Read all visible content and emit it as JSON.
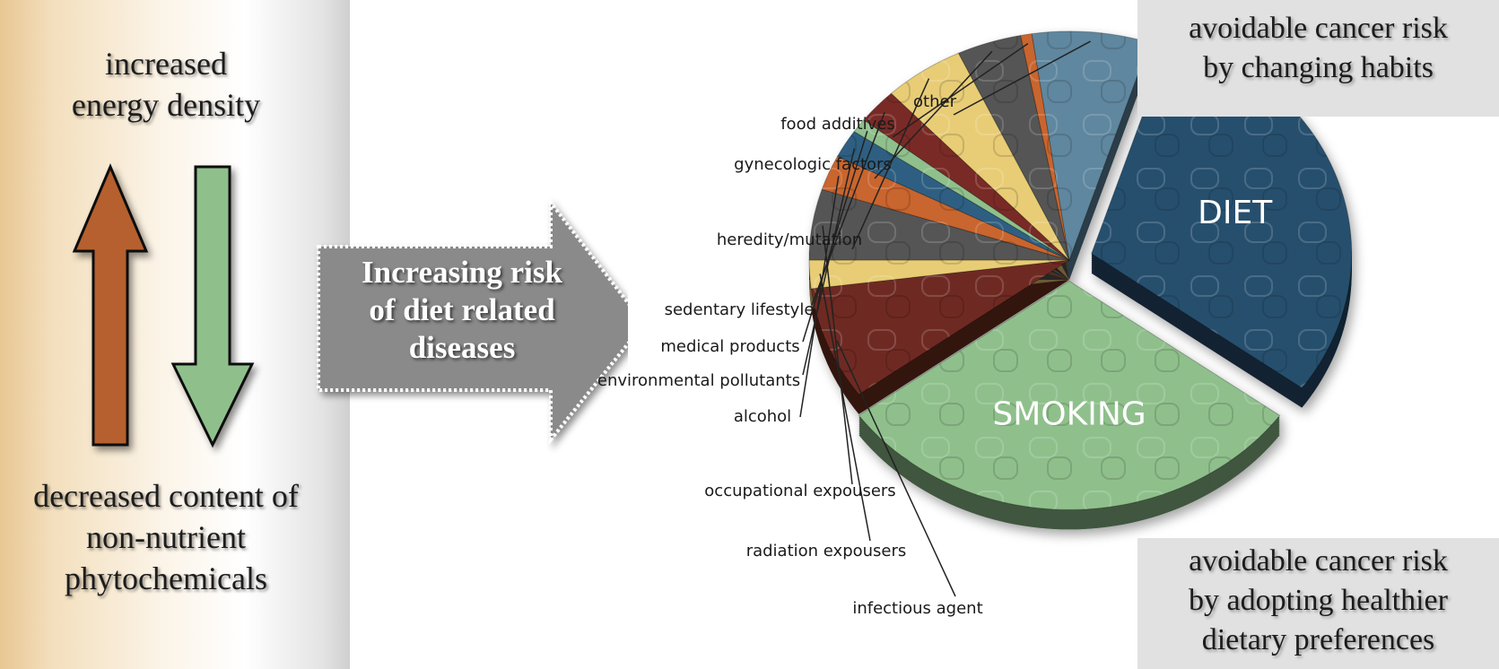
{
  "left_panel": {
    "top_text": [
      "increased",
      "energy density"
    ],
    "bottom_text": [
      "decreased content of",
      "non-nutrient",
      "phytochemicals"
    ]
  },
  "big_arrow": {
    "text": [
      "Increasing risk",
      "of diet related",
      "diseases"
    ]
  },
  "callouts": {
    "top": [
      "avoidable cancer risk",
      "by changing habits"
    ],
    "bottom": [
      "avoidable cancer risk",
      "by adopting healthier",
      "dietary preferences"
    ]
  },
  "colors": {
    "up_arrow": "#b5602f",
    "down_arrow": "#8fc08c",
    "big_arrow": "#8a8a8a"
  },
  "chart_data": {
    "type": "pie",
    "title": "",
    "slices": [
      {
        "label": "DIET",
        "value": 30,
        "color": "#27506e",
        "exploded": true
      },
      {
        "label": "SMOKING",
        "value": 30,
        "color": "#8fc08c",
        "exploded": true
      },
      {
        "label": "infectious agent",
        "value": 8,
        "color": "#6e2a22",
        "exploded": false
      },
      {
        "label": "radiation expousers",
        "value": 2,
        "color": "#e8cd76",
        "exploded": false
      },
      {
        "label": "occupational expousers",
        "value": 5,
        "color": "#555555",
        "exploded": false
      },
      {
        "label": "alcohol",
        "value": 2.5,
        "color": "#c9652d",
        "exploded": false
      },
      {
        "label": "environmental pollutants",
        "value": 2,
        "color": "#2d5f82",
        "exploded": false
      },
      {
        "label": "medical products",
        "value": 1,
        "color": "#8fc08c",
        "exploded": false
      },
      {
        "label": "sedentary lifestyle",
        "value": 2.5,
        "color": "#7a2b27",
        "exploded": false
      },
      {
        "label": "heredity/mutation",
        "value": 5,
        "color": "#e8cd76",
        "exploded": false
      },
      {
        "label": "gynecologic factors",
        "value": 4,
        "color": "#555555",
        "exploded": false
      },
      {
        "label": "food additives",
        "value": 0.7,
        "color": "#c9652d",
        "exploded": false
      },
      {
        "label": "other",
        "value": 7.3,
        "color": "#5f879f",
        "exploded": false
      }
    ]
  }
}
